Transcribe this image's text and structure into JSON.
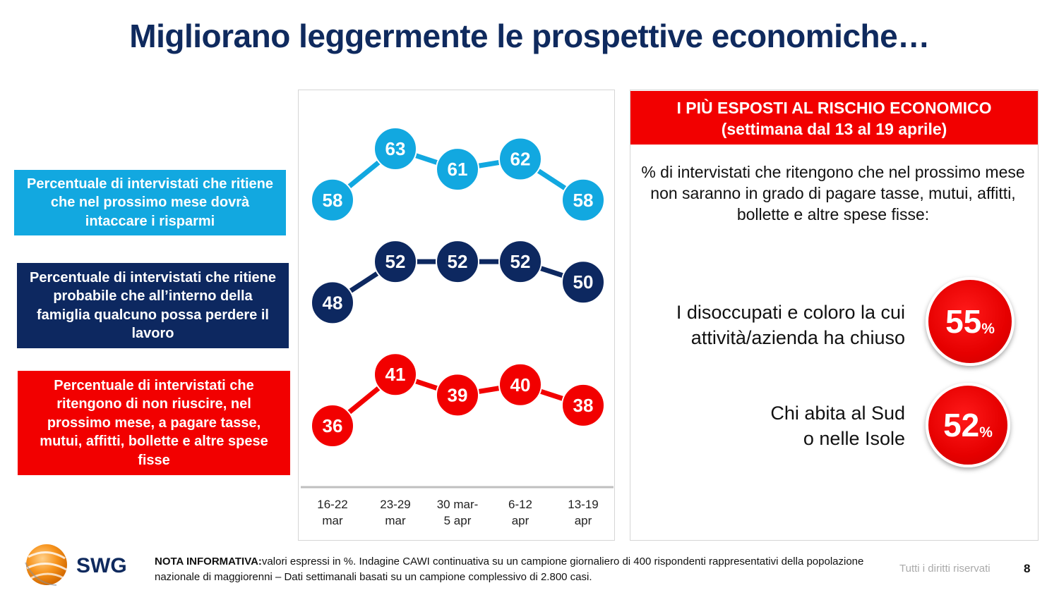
{
  "title": "Migliorano leggermente le prospettive economiche…",
  "legend": [
    {
      "text": "Percentuale di intervistati che ritiene che nel prossimo mese dovrà intaccare i risparmi",
      "color": "#12a8e0"
    },
    {
      "text": "Percentuale di intervistati che ritiene probabile che all’interno della famiglia qualcuno possa perdere il lavoro",
      "color": "#0d2860"
    },
    {
      "text": "Percentuale di intervistati che ritengono di non riuscire, nel prossimo mese, a pagare tasse, mutui, affitti, bollette e altre spese fisse",
      "color": "#f20000"
    }
  ],
  "chart_data": {
    "type": "line",
    "categories": [
      "16-22 mar",
      "23-29 mar",
      "30 mar-5 apr",
      "6-12 apr",
      "13-19 apr"
    ],
    "category_lines": [
      [
        "16-22",
        "mar"
      ],
      [
        "23-29",
        "mar"
      ],
      [
        "30 mar-",
        "5 apr"
      ],
      [
        "6-12",
        "apr"
      ],
      [
        "13-19",
        "apr"
      ]
    ],
    "series": [
      {
        "values": [
          58,
          63,
          61,
          62,
          58
        ],
        "color": "#12a8e0"
      },
      {
        "values": [
          48,
          52,
          52,
          52,
          50
        ],
        "color": "#0d2860"
      },
      {
        "values": [
          36,
          41,
          39,
          40,
          38
        ],
        "color": "#f20000"
      }
    ],
    "ylim": [
      30,
      66
    ],
    "grid": false,
    "legend": "left"
  },
  "risk": {
    "header_line1": "I PIÙ ESPOSTI AL RISCHIO ECONOMICO",
    "header_line2": "(settimana dal 13 al 19 aprile)",
    "description": "% di intervistati che ritengono che nel prossimo mese non saranno in grado di pagare tasse, mutui, affitti, bollette e altre spese fisse:",
    "items": [
      {
        "line1": "I disoccupati e coloro la cui",
        "line2": "attività/azienda ha chiuso",
        "value": "55",
        "unit": "%"
      },
      {
        "line1": "Chi abita al Sud",
        "line2": "o nelle Isole",
        "value": "52",
        "unit": "%"
      }
    ],
    "accent": "#f20000"
  },
  "footer": {
    "logo_text": "SWG",
    "note_label": "NOTA INFORMATIVA:",
    "note_text": "valori espressi in %. Indagine CAWI continuativa su un campione giornaliero di 400 rispondenti rappresentativi della popolazione nazionale di maggiorenni – Dati settimanali basati su un campione complessivo di 2.800 casi.",
    "rights": "Tutti i diritti riservati",
    "page": "8"
  }
}
